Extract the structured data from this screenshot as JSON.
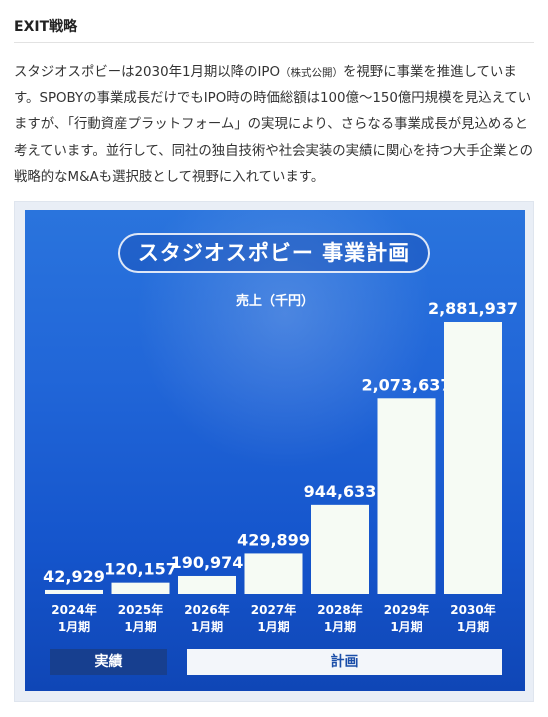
{
  "section": {
    "heading": "EXIT戦略",
    "paragraph_part1": "スタジオスポビーは2030年1月期以降のIPO",
    "paragraph_small": "（株式公開）",
    "paragraph_part2": "を視野に事業を推進しています。SPOBYの事業成長だけでもIPO時の時価総額は100億～150億円規模を見込えていますが、「行動資産プラットフォーム」の実現により、さらなる事業成長が見込めると考えています。並行して、同社の独自技術や社会実装の実績に関心を持つ大手企業との戦略的なM&Aも選択肢として視野に入れています。"
  },
  "chart_data": {
    "type": "bar",
    "title": "スタジオスポビー 事業計画",
    "ylabel": "売上（千円）",
    "categories": [
      [
        "2024年",
        "1月期"
      ],
      [
        "2025年",
        "1月期"
      ],
      [
        "2026年",
        "1月期"
      ],
      [
        "2027年",
        "1月期"
      ],
      [
        "2028年",
        "1月期"
      ],
      [
        "2029年",
        "1月期"
      ],
      [
        "2030年",
        "1月期"
      ]
    ],
    "values": [
      42929,
      120157,
      190974,
      429899,
      944633,
      2073637,
      2881937
    ],
    "value_labels": [
      "42,929",
      "120,157",
      "190,974",
      "429,899",
      "944,633",
      "2,073,637",
      "2,881,937"
    ],
    "ylim": [
      0,
      2881937
    ],
    "grid": false,
    "legend": {
      "actual": "実績",
      "plan": "計画"
    },
    "colors": {
      "bar": "#f6fbf4",
      "text": "#ffffff",
      "panel": "#1d62d6",
      "actual_bg": "#173f8f",
      "plan_bg": "#f3f6fa"
    }
  }
}
